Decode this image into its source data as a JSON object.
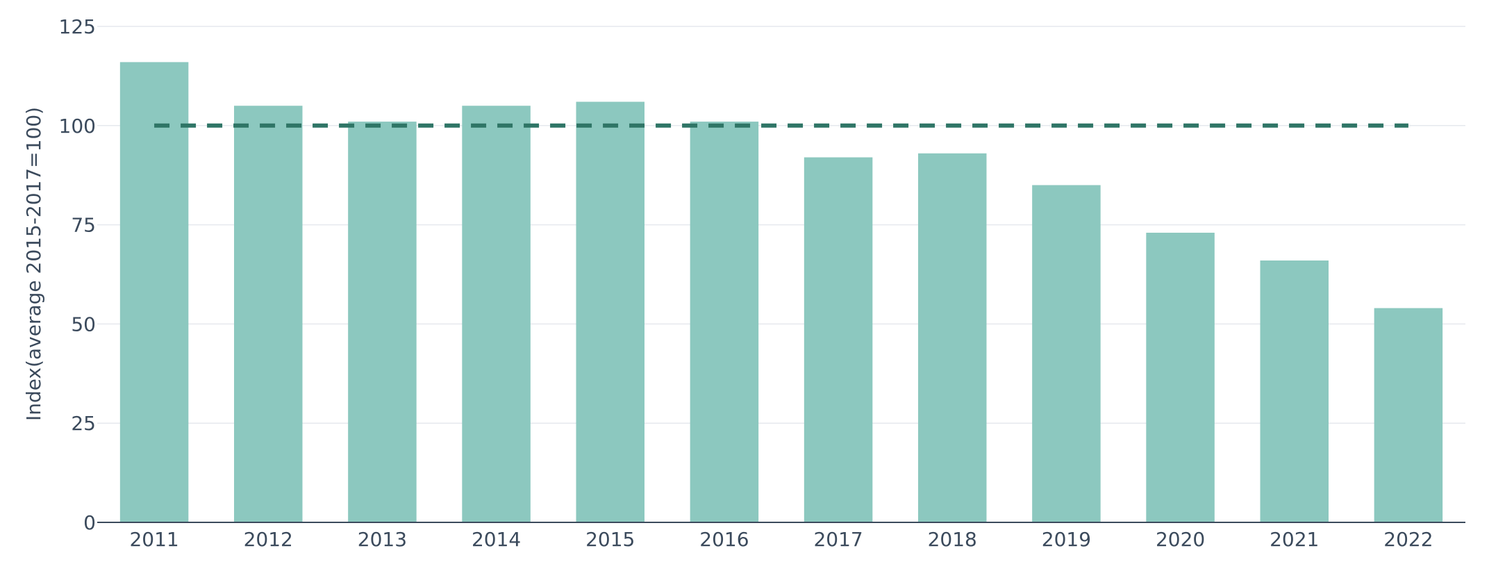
{
  "chart_data": {
    "type": "bar",
    "categories": [
      "2011",
      "2012",
      "2013",
      "2014",
      "2015",
      "2016",
      "2017",
      "2018",
      "2019",
      "2020",
      "2021",
      "2022"
    ],
    "values": [
      116,
      105,
      101,
      105,
      106,
      101,
      92,
      93,
      85,
      73,
      66,
      54
    ],
    "title": "",
    "xlabel": "",
    "ylabel": "Index(average 2015-2017=100)",
    "ylim": [
      0,
      125
    ],
    "yticks": [
      0,
      25,
      50,
      75,
      100,
      125
    ],
    "reference_line": {
      "value": 100,
      "style": "dashed",
      "from_category": "2011",
      "to_category": "2022"
    },
    "grid": true,
    "legend": "none",
    "colors": {
      "bar": "#8cc8bf",
      "reference_line": "#2f7566",
      "grid": "#e6e9ee",
      "axis_line": "#3b4a5c",
      "text": "#3b4a5c"
    }
  }
}
